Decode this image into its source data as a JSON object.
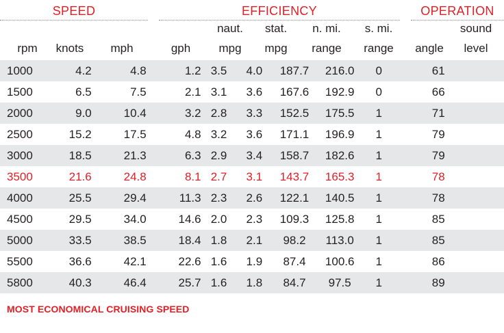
{
  "groups": {
    "speed": "SPEED",
    "efficiency": "EFFICIENCY",
    "operation": "OPERATION"
  },
  "columns": [
    {
      "line1": "",
      "line2": "rpm"
    },
    {
      "line1": "",
      "line2": "knots"
    },
    {
      "line1": "",
      "line2": "mph"
    },
    {
      "line1": "",
      "line2": "gph"
    },
    {
      "line1": "naut.",
      "line2": "mpg"
    },
    {
      "line1": "stat.",
      "line2": "mpg"
    },
    {
      "line1": "n. mi.",
      "line2": "range"
    },
    {
      "line1": "s. mi.",
      "line2": "range"
    },
    {
      "line1": "",
      "line2": "angle"
    },
    {
      "line1": "sound",
      "line2": "level"
    }
  ],
  "rows": [
    [
      "1000",
      "4.2",
      "4.8",
      "1.2",
      "3.5",
      "4.0",
      "187.7",
      "216.0",
      "0",
      "61"
    ],
    [
      "1500",
      "6.5",
      "7.5",
      "2.1",
      "3.1",
      "3.6",
      "167.6",
      "192.9",
      "0",
      "66"
    ],
    [
      "2000",
      "9.0",
      "10.4",
      "3.2",
      "2.8",
      "3.3",
      "152.5",
      "175.5",
      "1",
      "71"
    ],
    [
      "2500",
      "15.2",
      "17.5",
      "4.8",
      "3.2",
      "3.6",
      "171.1",
      "196.9",
      "1",
      "79"
    ],
    [
      "3000",
      "18.5",
      "21.3",
      "6.3",
      "2.9",
      "3.4",
      "158.7",
      "182.6",
      "1",
      "79"
    ],
    [
      "3500",
      "21.6",
      "24.8",
      "8.1",
      "2.7",
      "3.1",
      "143.7",
      "165.3",
      "1",
      "78"
    ],
    [
      "4000",
      "25.5",
      "29.4",
      "11.3",
      "2.3",
      "2.6",
      "122.1",
      "140.5",
      "1",
      "78"
    ],
    [
      "4500",
      "29.5",
      "34.0",
      "14.6",
      "2.0",
      "2.3",
      "109.3",
      "125.8",
      "1",
      "85"
    ],
    [
      "5000",
      "33.5",
      "38.5",
      "18.4",
      "1.8",
      "2.1",
      "98.2",
      "113.0",
      "1",
      "85"
    ],
    [
      "5500",
      "36.6",
      "42.1",
      "22.6",
      "1.6",
      "1.9",
      "87.4",
      "100.6",
      "1",
      "86"
    ],
    [
      "5800",
      "40.3",
      "46.4",
      "25.7",
      "1.6",
      "1.8",
      "84.7",
      "97.5",
      "1",
      "89"
    ]
  ],
  "highlight_row": "3500",
  "highlight_color": "#e31e24",
  "stripe_color": "#e6e7e8",
  "footnote": "MOST ECONOMICAL CRUISING SPEED"
}
